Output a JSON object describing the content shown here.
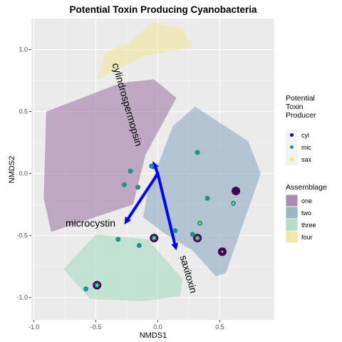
{
  "chart_data": {
    "type": "scatter",
    "title": "Potential Toxin Producing Cyanobacteria",
    "xlabel": "NMDS1",
    "ylabel": "NMDS2",
    "xlim": [
      -1.02,
      0.94
    ],
    "ylim": [
      -1.18,
      1.25
    ],
    "x_ticks": [
      -1.0,
      -0.5,
      0.0,
      0.5
    ],
    "x_tick_labels": [
      "-1.0",
      "-0.5",
      "0.0",
      "0.5"
    ],
    "y_ticks": [
      -1.0,
      -0.5,
      0.0,
      0.5,
      1.0
    ],
    "y_tick_labels": [
      "-1.0",
      "-0.5",
      "0.0",
      "0.5",
      "1.0"
    ],
    "assemblage_hulls": [
      {
        "name": "one",
        "color": "#9e7aa6",
        "points": [
          [
            -0.9,
            0.5
          ],
          [
            -0.3,
            0.73
          ],
          [
            -0.03,
            0.76
          ],
          [
            0.15,
            0.61
          ],
          [
            -0.1,
            0.15
          ],
          [
            -0.2,
            -0.25
          ],
          [
            -0.86,
            -0.47
          ],
          [
            -0.92,
            -0.2
          ]
        ]
      },
      {
        "name": "two",
        "color": "#8fa9c0",
        "points": [
          [
            0.3,
            0.54
          ],
          [
            0.73,
            0.26
          ],
          [
            0.83,
            0.0
          ],
          [
            0.55,
            -0.8
          ],
          [
            0.47,
            -0.83
          ],
          [
            0.28,
            -0.62
          ],
          [
            0.05,
            -0.48
          ],
          [
            -0.12,
            -0.35
          ],
          [
            -0.08,
            -0.15
          ],
          [
            0.12,
            0.38
          ]
        ]
      },
      {
        "name": "three",
        "color": "#a9dbc2",
        "points": [
          [
            -0.5,
            -0.49
          ],
          [
            -0.08,
            -0.53
          ],
          [
            0.2,
            -0.85
          ],
          [
            0.18,
            -0.99
          ],
          [
            -0.13,
            -1.03
          ],
          [
            -0.55,
            -1.01
          ],
          [
            -0.76,
            -0.77
          ]
        ]
      },
      {
        "name": "four",
        "color": "#f2e69e",
        "points": [
          [
            -0.42,
            0.98
          ],
          [
            -0.24,
            1.05
          ],
          [
            -0.04,
            1.22
          ],
          [
            0.2,
            1.17
          ],
          [
            0.28,
            1.02
          ],
          [
            -0.1,
            0.95
          ],
          [
            -0.49,
            0.76
          ]
        ]
      }
    ],
    "vectors": [
      {
        "name": "cylindrospermopsin",
        "x": -0.04,
        "y": 0.1
      },
      {
        "name": "microcystin",
        "x": -0.27,
        "y": -0.41
      },
      {
        "name": "saxitoxin",
        "x": 0.15,
        "y": -0.62
      }
    ],
    "sites": [
      {
        "x": -0.22,
        "y": 0.02,
        "producers": [
          "mic"
        ]
      },
      {
        "x": -0.16,
        "y": -0.11,
        "producers": [
          "mic"
        ]
      },
      {
        "x": -0.27,
        "y": -0.09,
        "producers": [
          "mic"
        ]
      },
      {
        "x": -0.32,
        "y": -0.53,
        "producers": [
          "mic"
        ]
      },
      {
        "x": -0.58,
        "y": -0.93,
        "producers": [
          "mic"
        ]
      },
      {
        "x": -0.49,
        "y": -0.9,
        "producers": [
          "cyl",
          "mic",
          "sax"
        ]
      },
      {
        "x": -0.15,
        "y": -0.58,
        "producers": [
          "mic"
        ]
      },
      {
        "x": -0.03,
        "y": -0.52,
        "producers": [
          "cyl",
          "mic",
          "sax"
        ]
      },
      {
        "x": 0.32,
        "y": -0.52,
        "producers": [
          "cyl",
          "mic",
          "sax"
        ]
      },
      {
        "x": 0.52,
        "y": -0.63,
        "producers": [
          "cyl",
          "sax"
        ]
      },
      {
        "x": 0.63,
        "y": -0.14,
        "producers": [
          "cyl"
        ]
      },
      {
        "x": 0.61,
        "y": -0.24,
        "producers": [
          "mic",
          "sax"
        ]
      },
      {
        "x": 0.34,
        "y": -0.4,
        "producers": [
          "mic",
          "sax"
        ]
      },
      {
        "x": 0.4,
        "y": -0.2,
        "producers": [
          "mic"
        ]
      },
      {
        "x": 0.32,
        "y": 0.17,
        "producers": [
          "mic"
        ]
      },
      {
        "x": 0.28,
        "y": -0.49,
        "producers": [
          "mic"
        ]
      },
      {
        "x": 0.14,
        "y": -0.46,
        "producers": [
          "mic"
        ]
      },
      {
        "x": -0.05,
        "y": 0.06,
        "producers": [
          "mic"
        ]
      }
    ]
  },
  "legend": {
    "producer_title_lines": [
      "Potential",
      "Toxin",
      "Producer"
    ],
    "producers": [
      {
        "key": "cyl",
        "label": "cyl",
        "color": "#440154"
      },
      {
        "key": "mic",
        "label": "mic",
        "color": "#21908c"
      },
      {
        "key": "sax",
        "label": "sax",
        "color": "#fde725"
      }
    ],
    "assemblage_title": "Assemblage",
    "assemblages": [
      {
        "label": "one",
        "color": "#9e7aa6"
      },
      {
        "label": "two",
        "color": "#8fa9c0"
      },
      {
        "label": "three",
        "color": "#a9dbc2"
      },
      {
        "label": "four",
        "color": "#f2e69e"
      }
    ]
  },
  "style": {
    "panel_bg": "#ebebeb",
    "grid_color": "#ffffff",
    "arrow_color": "#0000ff",
    "producer_sizes": {
      "cyl": 12,
      "mic": 7,
      "sax": 2
    }
  }
}
